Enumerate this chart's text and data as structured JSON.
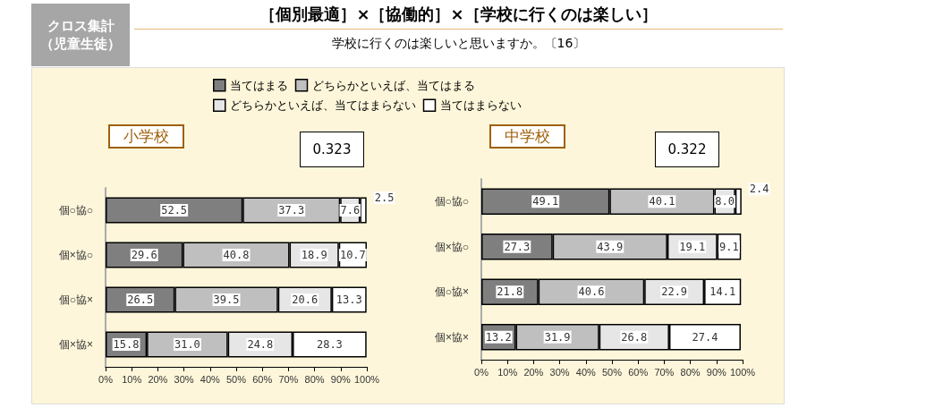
{
  "chart_data": [
    {
      "type": "bar",
      "orientation": "horizontal",
      "stacked": true,
      "title": "小学校",
      "annotations": [
        "［個別最適］×［協働的］×［学校に行くのは楽しい］",
        "学校に行くのは楽しいと思いますか。〔16〕",
        "クロス集計（児童生徒）",
        "0.323"
      ],
      "categories": [
        "個○協○",
        "個×協○",
        "個○協×",
        "個×協×"
      ],
      "series": [
        {
          "name": "当てはまる",
          "color": "#7f7f7f",
          "values": [
            52.5,
            29.6,
            26.5,
            15.8
          ],
          "value_labels": [
            "52.5",
            "29.6",
            "26.5",
            "15.8"
          ]
        },
        {
          "name": "どちらかといえば、当てはまる",
          "color": "#bfbfbf",
          "values": [
            37.3,
            40.8,
            39.5,
            31.0
          ],
          "value_labels": [
            "37.3",
            "40.8",
            "39.5",
            "31.0"
          ]
        },
        {
          "name": "どちらかといえば、当てはまらない",
          "color": "#e6e6e6",
          "values": [
            7.6,
            18.9,
            20.6,
            24.8
          ],
          "value_labels": [
            "7.6",
            "18.9",
            "20.6",
            "24.8"
          ]
        },
        {
          "name": "当てはまらない",
          "color": "#ffffff",
          "values": [
            2.5,
            10.7,
            13.3,
            28.3
          ],
          "value_labels": [
            "2.5",
            "10.7",
            "13.3",
            "28.3"
          ]
        }
      ],
      "xlim": [
        0,
        100
      ],
      "xticks": [
        {
          "value": 0,
          "label": "0%"
        },
        {
          "value": 10,
          "label": "10%"
        },
        {
          "value": 20,
          "label": "20%"
        },
        {
          "value": 30,
          "label": "30%"
        },
        {
          "value": 40,
          "label": "40%"
        },
        {
          "value": 50,
          "label": "50%"
        },
        {
          "value": 60,
          "label": "60%"
        },
        {
          "value": 70,
          "label": "70%"
        },
        {
          "value": 80,
          "label": "80%"
        },
        {
          "value": 90,
          "label": "90%"
        },
        {
          "value": 100,
          "label": "100%"
        }
      ],
      "grid": false,
      "legend": "top"
    },
    {
      "type": "bar",
      "orientation": "horizontal",
      "stacked": true,
      "title": "中学校",
      "annotations": [
        "0.322"
      ],
      "categories": [
        "個○協○",
        "個×協○",
        "個○協×",
        "個×協×"
      ],
      "series": [
        {
          "color": "#7f7f7f",
          "values": [
            49.1,
            27.3,
            21.8,
            13.2
          ],
          "value_labels": [
            "49.1",
            "27.3",
            "21.8",
            "13.2"
          ]
        },
        {
          "color": "#bfbfbf",
          "values": [
            40.1,
            43.9,
            40.6,
            31.9
          ],
          "value_labels": [
            "40.1",
            "43.9",
            "40.6",
            "31.9"
          ]
        },
        {
          "color": "#e6e6e6",
          "values": [
            8.0,
            19.1,
            22.9,
            26.8
          ],
          "value_labels": [
            "8.0",
            "19.1",
            "22.9",
            "26.8"
          ]
        },
        {
          "color": "#ffffff",
          "values": [
            2.4,
            9.1,
            14.1,
            27.4
          ],
          "value_labels": [
            "2.4",
            "9.1",
            "14.1",
            "27.4"
          ]
        }
      ],
      "xlim": [
        0,
        100
      ],
      "xticks": [
        {
          "value": 0,
          "label": "0%"
        },
        {
          "value": 10,
          "label": "10%"
        },
        {
          "value": 20,
          "label": "20%"
        },
        {
          "value": 30,
          "label": "30%"
        },
        {
          "value": 40,
          "label": "40%"
        },
        {
          "value": 50,
          "label": "50%"
        },
        {
          "value": 60,
          "label": "60%"
        },
        {
          "value": 70,
          "label": "70%"
        },
        {
          "value": 80,
          "label": "80%"
        },
        {
          "value": 90,
          "label": "90%"
        },
        {
          "value": 100,
          "label": "100%"
        }
      ],
      "grid": false
    }
  ]
}
